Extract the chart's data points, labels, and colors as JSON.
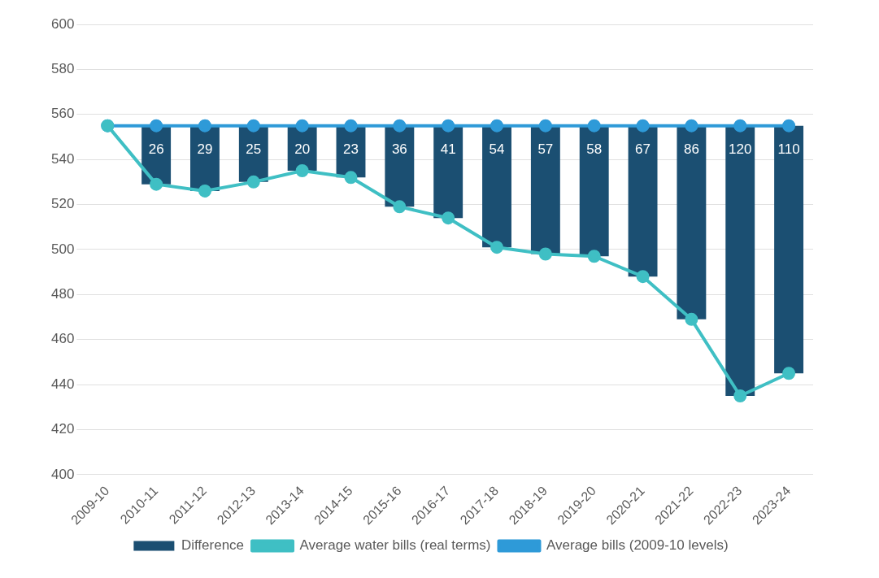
{
  "chart_data": {
    "type": "bar",
    "categories": [
      "2009-10",
      "2010-11",
      "2011-12",
      "2012-13",
      "2013-14",
      "2014-15",
      "2015-16",
      "2016-17",
      "2017-18",
      "2018-19",
      "2019-20",
      "2020-21",
      "2021-22",
      "2022-23",
      "2023-24"
    ],
    "series": [
      {
        "name": "Difference",
        "color": "#1b4f72",
        "values": [
          null,
          26,
          29,
          25,
          20,
          23,
          36,
          41,
          54,
          57,
          58,
          67,
          86,
          120,
          110
        ],
        "value_labels": [
          null,
          "26",
          "29",
          "25",
          "20",
          "23",
          "36",
          "41",
          "54",
          "57",
          "58",
          "67",
          "86",
          "120",
          "110"
        ],
        "base": [
          null,
          529,
          526,
          530,
          535,
          532,
          519,
          514,
          501,
          498,
          497,
          488,
          469,
          435,
          445
        ]
      },
      {
        "name": "Average water bills (real terms)",
        "type": "line",
        "color": "#3fbfc4",
        "marker": "circle",
        "values": [
          555,
          529,
          526,
          530,
          535,
          532,
          519,
          514,
          501,
          498,
          497,
          488,
          469,
          435,
          445
        ]
      },
      {
        "name": "Average bills (2009-10 levels)",
        "type": "line",
        "color": "#2e9ad8",
        "marker": "circle",
        "values": [
          555,
          555,
          555,
          555,
          555,
          555,
          555,
          555,
          555,
          555,
          555,
          555,
          555,
          555,
          555
        ]
      }
    ],
    "ylim": [
      400,
      600
    ],
    "yticks": [
      400,
      420,
      440,
      460,
      480,
      500,
      520,
      540,
      560,
      580,
      600
    ],
    "grid": "y",
    "legend": "bottom"
  }
}
